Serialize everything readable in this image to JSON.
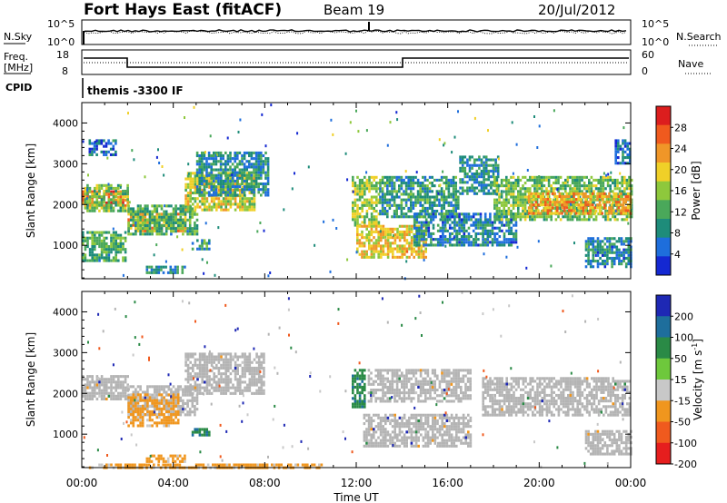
{
  "header": {
    "station": "Fort Hays East (fitACF)",
    "beam": "Beam 19",
    "date": "20/Jul/2012"
  },
  "top_panel": {
    "left_label": "N.Sky",
    "right_label": "N.Search",
    "left_ticks": [
      "10^5",
      "10^0"
    ],
    "right_ticks": [
      "10^5",
      "10^0"
    ],
    "freq_label_line1": "Freq.",
    "freq_label_line2": "[MHz]",
    "freq_ticks": [
      "18",
      "8"
    ],
    "nave_label": "Nave",
    "nave_ticks": [
      "60",
      "0"
    ],
    "cpid_label": "CPID",
    "cpid_text": "themis -3300 IF"
  },
  "time_axis": {
    "label": "Time UT",
    "ticks": [
      "00:00",
      "04:00",
      "08:00",
      "12:00",
      "16:00",
      "20:00",
      "00:00"
    ]
  },
  "chart_data": [
    {
      "type": "heatmap",
      "panel": "power",
      "xlabel": "Time UT",
      "ylabel": "Slant Range [km]",
      "x_unit": "hours UT",
      "xlim": [
        0,
        24
      ],
      "ylim": [
        180,
        4500
      ],
      "y_ticks": [
        "1000",
        "2000",
        "3000",
        "4000"
      ],
      "colorbar_label": "Power [dB]",
      "colorbar_ticks": [
        "4",
        "8",
        "12",
        "16",
        "20",
        "24",
        "28"
      ],
      "colorbar_range": [
        0,
        32
      ],
      "colorbar_colors": [
        "#1428d2",
        "#1e6edc",
        "#1e8c7a",
        "#4aa85a",
        "#8ec83c",
        "#f0d028",
        "#f09628",
        "#f05a1e",
        "#dc1e1e"
      ],
      "echo_bands": [
        {
          "t0": 0.0,
          "t1": 2.0,
          "r0": 1950,
          "r1": 2350,
          "value": 26
        },
        {
          "t0": 0.1,
          "t1": 2.0,
          "r0": 1850,
          "r1": 2500,
          "value": 14
        },
        {
          "t0": 0.0,
          "t1": 1.9,
          "r0": 600,
          "r1": 1350,
          "value": 12
        },
        {
          "t0": 0.3,
          "t1": 1.5,
          "r0": 3200,
          "r1": 3600,
          "value": 6
        },
        {
          "t0": 2.0,
          "t1": 4.5,
          "r0": 1350,
          "r1": 1800,
          "value": 22
        },
        {
          "t0": 2.0,
          "t1": 5.0,
          "r0": 1250,
          "r1": 2000,
          "value": 12
        },
        {
          "t0": 4.5,
          "t1": 7.5,
          "r0": 1900,
          "r1": 2800,
          "value": 18
        },
        {
          "t0": 5.0,
          "t1": 8.2,
          "r0": 2200,
          "r1": 3300,
          "value": 9
        },
        {
          "t0": 2.8,
          "t1": 4.5,
          "r0": 300,
          "r1": 500,
          "value": 10
        },
        {
          "t0": 4.8,
          "t1": 5.6,
          "r0": 900,
          "r1": 1150,
          "value": 10
        },
        {
          "t0": 11.8,
          "t1": 13.0,
          "r0": 1500,
          "r1": 2700,
          "value": 16
        },
        {
          "t0": 12.0,
          "t1": 15.0,
          "r0": 700,
          "r1": 1500,
          "value": 20
        },
        {
          "t0": 13.0,
          "t1": 16.5,
          "r0": 1700,
          "r1": 2700,
          "value": 10
        },
        {
          "t0": 14.5,
          "t1": 19.0,
          "r0": 1000,
          "r1": 1800,
          "value": 8
        },
        {
          "t0": 16.5,
          "t1": 18.2,
          "r0": 2300,
          "r1": 3200,
          "value": 9
        },
        {
          "t0": 18.0,
          "t1": 24.0,
          "r0": 1600,
          "r1": 2700,
          "value": 14
        },
        {
          "t0": 19.5,
          "t1": 24.0,
          "r0": 1800,
          "r1": 2300,
          "value": 22
        },
        {
          "t0": 22.0,
          "t1": 24.0,
          "r0": 500,
          "r1": 1200,
          "value": 8
        },
        {
          "t0": 23.3,
          "t1": 24.0,
          "r0": 3000,
          "r1": 3600,
          "value": 6
        }
      ]
    },
    {
      "type": "heatmap",
      "panel": "velocity",
      "xlabel": "Time UT",
      "ylabel": "Slant Range [km]",
      "x_unit": "hours UT",
      "xlim": [
        0,
        24
      ],
      "ylim": [
        180,
        4500
      ],
      "y_ticks": [
        "1000",
        "2000",
        "3000",
        "4000"
      ],
      "colorbar_label": "Velocity [m s",
      "colorbar_label_exp": "-1",
      "colorbar_label_end": "]",
      "colorbar_ticks": [
        "200",
        "100",
        "50",
        "15",
        "-15",
        "-50",
        "-100",
        "-200"
      ],
      "colorbar_colors": [
        "#1e28b4",
        "#1e6e9c",
        "#2a8a46",
        "#6ec83c",
        "#c8c8c8",
        "#f0961e",
        "#f05a1e",
        "#e61e1e"
      ],
      "ground_scatter_color": "#b4b4b4",
      "echo_bands": [
        {
          "t0": 0.0,
          "t1": 2.0,
          "r0": 1850,
          "r1": 2450,
          "value": 0
        },
        {
          "t0": 2.0,
          "t1": 5.0,
          "r0": 1500,
          "r1": 2200,
          "value": 0
        },
        {
          "t0": 2.0,
          "t1": 4.2,
          "r0": 1200,
          "r1": 2000,
          "value": -60
        },
        {
          "t0": 4.5,
          "t1": 8.0,
          "r0": 2000,
          "r1": 3000,
          "value": 0
        },
        {
          "t0": 2.8,
          "t1": 4.5,
          "r0": 300,
          "r1": 500,
          "value": -60
        },
        {
          "t0": 4.8,
          "t1": 5.6,
          "r0": 950,
          "r1": 1150,
          "value": 45
        },
        {
          "t0": 11.8,
          "t1": 12.4,
          "r0": 1700,
          "r1": 2600,
          "value": 40
        },
        {
          "t0": 12.3,
          "t1": 17.0,
          "r0": 700,
          "r1": 1500,
          "value": 0
        },
        {
          "t0": 12.5,
          "t1": 17.0,
          "r0": 1800,
          "r1": 2600,
          "value": 0
        },
        {
          "t0": 17.5,
          "t1": 24.0,
          "r0": 1500,
          "r1": 2400,
          "value": 0
        },
        {
          "t0": 22.0,
          "t1": 24.0,
          "r0": 500,
          "r1": 1100,
          "value": 0
        },
        {
          "t0": 0.0,
          "t1": 10.5,
          "r0": 180,
          "r1": 280,
          "value": -60
        }
      ]
    }
  ]
}
